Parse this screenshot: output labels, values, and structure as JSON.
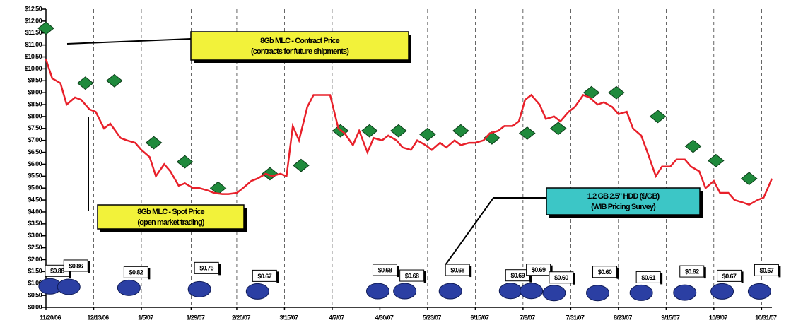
{
  "chart_data": {
    "type": "line",
    "xlim": [
      "11/20/06",
      "11/5/07"
    ],
    "xticks": [
      "11/20/06",
      "12/13/06",
      "1/5/07",
      "1/29/07",
      "2/20/07",
      "3/15/07",
      "4/7/07",
      "4/30/07",
      "5/23/07",
      "6/15/07",
      "7/8/07",
      "7/31/07",
      "8/23/07",
      "9/15/07",
      "10/8/07",
      "10/31/07"
    ],
    "ylim": [
      0,
      12.5
    ],
    "yticks": [
      {
        "value": 0,
        "label": "$0.00"
      },
      {
        "value": 0.5,
        "label": "$0.50"
      },
      {
        "value": 1,
        "label": "$1.00"
      },
      {
        "value": 1.5,
        "label": "$1.50"
      },
      {
        "value": 2,
        "label": "$2.00"
      },
      {
        "value": 2.5,
        "label": "$2.50"
      },
      {
        "value": 3,
        "label": "$3.00"
      },
      {
        "value": 3.5,
        "label": "$3.50"
      },
      {
        "value": 4,
        "label": "$4.00"
      },
      {
        "value": 4.5,
        "label": "$4.50"
      },
      {
        "value": 5,
        "label": "$5.00"
      },
      {
        "value": 5.5,
        "label": "$5.50"
      },
      {
        "value": 6,
        "label": "$6.00"
      },
      {
        "value": 6.5,
        "label": "$6.50"
      },
      {
        "value": 7,
        "label": "$7.00"
      },
      {
        "value": 7.5,
        "label": "$7.50"
      },
      {
        "value": 8,
        "label": "$8.00"
      },
      {
        "value": 8.5,
        "label": "$8.50"
      },
      {
        "value": 9,
        "label": "$9.00"
      },
      {
        "value": 9.5,
        "label": "$9.50"
      },
      {
        "value": 10,
        "label": "$10.00"
      },
      {
        "value": 10.5,
        "label": "$10.50"
      },
      {
        "value": 11,
        "label": "$11.00"
      },
      {
        "value": 11.5,
        "label": "$11.50"
      },
      {
        "value": 12,
        "label": "$12.00"
      },
      {
        "value": 12.5,
        "label": "$12.50"
      }
    ],
    "grid": "x",
    "series": [
      {
        "name": "8Gb MLC - Contract Price",
        "note": "(contracts for future shipments)",
        "style": "diamond",
        "color": "#1f8a3c",
        "box_color": "#f2f23a",
        "x": [
          "11/20/06",
          "12/9/06",
          "12/23/06",
          "1/11/07",
          "1/26/07",
          "2/11/07",
          "3/8/07",
          "3/23/07",
          "4/11/07",
          "4/25/07",
          "5/9/07",
          "5/23/07",
          "6/8/07",
          "6/23/07",
          "7/10/07",
          "7/25/07",
          "8/10/07",
          "8/22/07",
          "9/11/07",
          "9/28/07",
          "10/9/07",
          "10/25/07"
        ],
        "values": [
          11.7,
          9.4,
          9.5,
          6.9,
          6.1,
          5.0,
          5.6,
          5.95,
          7.4,
          7.4,
          7.4,
          7.25,
          7.4,
          7.1,
          7.3,
          7.5,
          9.0,
          9.0,
          8.0,
          6.75,
          6.15,
          5.4
        ]
      },
      {
        "name": "8Gb MLC - Spot Price",
        "note": "(open market trading)",
        "style": "line",
        "color": "#e8202a",
        "box_color": "#f2f23a",
        "x": [
          "11/20/06",
          "11/23/06",
          "11/27/06",
          "11/30/06",
          "12/4/06",
          "12/7/06",
          "12/11/06",
          "12/14/06",
          "12/18/06",
          "12/21/06",
          "12/26/06",
          "12/29/06",
          "1/2/07",
          "1/5/07",
          "1/9/07",
          "1/12/07",
          "1/16/07",
          "1/19/07",
          "1/23/07",
          "1/26/07",
          "1/30/07",
          "2/2/07",
          "2/6/07",
          "2/9/07",
          "2/13/07",
          "2/16/07",
          "2/20/07",
          "2/23/07",
          "2/27/07",
          "3/2/07",
          "3/6/07",
          "3/9/07",
          "3/13/07",
          "3/16/07",
          "3/19/07",
          "3/22/07",
          "3/26/07",
          "3/29/07",
          "4/2/07",
          "4/6/07",
          "4/10/07",
          "4/13/07",
          "4/17/07",
          "4/20/07",
          "4/24/07",
          "4/27/07",
          "5/1/07",
          "5/4/07",
          "5/8/07",
          "5/11/07",
          "5/15/07",
          "5/18/07",
          "5/22/07",
          "5/25/07",
          "5/29/07",
          "6/1/07",
          "6/5/07",
          "6/8/07",
          "6/12/07",
          "6/15/07",
          "6/19/07",
          "6/22/07",
          "6/26/07",
          "6/29/07",
          "7/3/07",
          "7/6/07",
          "7/9/07",
          "7/12/07",
          "7/16/07",
          "7/19/07",
          "7/23/07",
          "7/26/07",
          "7/30/07",
          "8/2/07",
          "8/6/07",
          "8/9/07",
          "8/13/07",
          "8/16/07",
          "8/20/07",
          "8/23/07",
          "8/27/07",
          "8/30/07",
          "9/3/07",
          "9/6/07",
          "9/10/07",
          "9/13/07",
          "9/17/07",
          "9/20/07",
          "9/24/07",
          "9/27/07",
          "10/1/07",
          "10/4/07",
          "10/8/07",
          "10/11/07",
          "10/15/07",
          "10/18/07",
          "10/22/07",
          "10/25/07",
          "10/29/07",
          "11/1/07",
          "11/5/07"
        ],
        "values": [
          10.4,
          9.6,
          9.4,
          8.5,
          8.8,
          8.7,
          8.3,
          8.2,
          7.5,
          7.7,
          7.1,
          7.0,
          6.9,
          6.6,
          6.3,
          5.5,
          6.0,
          5.7,
          5.1,
          5.2,
          5.0,
          5.0,
          4.9,
          4.8,
          4.75,
          4.75,
          4.8,
          5.0,
          5.3,
          5.4,
          5.6,
          5.5,
          5.6,
          5.5,
          7.6,
          7.0,
          8.4,
          8.9,
          8.9,
          8.9,
          7.5,
          7.3,
          6.8,
          7.4,
          6.5,
          7.1,
          7.0,
          7.2,
          7.0,
          6.7,
          6.6,
          7.0,
          6.8,
          6.6,
          6.9,
          6.7,
          7.0,
          6.8,
          6.9,
          6.9,
          7.0,
          7.3,
          7.4,
          7.6,
          7.6,
          7.8,
          8.7,
          8.9,
          8.5,
          7.9,
          8.0,
          7.8,
          8.2,
          8.4,
          8.9,
          8.8,
          8.5,
          8.6,
          8.4,
          8.1,
          8.2,
          7.5,
          7.2,
          6.5,
          5.5,
          5.9,
          5.9,
          6.2,
          6.2,
          5.9,
          5.7,
          5.0,
          5.3,
          4.8,
          4.8,
          4.5,
          4.4,
          4.3,
          4.5,
          4.6,
          5.4
        ]
      },
      {
        "name": "1.2 GB 2.5\" HDD ($/GB)",
        "note": "(WIB Pricing Survey)",
        "style": "circle",
        "color": "#2b3fa3",
        "box_color": "#3cc6c6",
        "x": [
          "11/22/06",
          "12/1/06",
          "12/30/06",
          "2/2/07",
          "3/2/07",
          "4/29/07",
          "5/12/07",
          "6/3/07",
          "7/2/07",
          "7/12/07",
          "7/23/07",
          "8/13/07",
          "9/3/07",
          "9/24/07",
          "10/12/07",
          "10/30/07"
        ],
        "values": [
          0.88,
          0.86,
          0.82,
          0.76,
          0.67,
          0.68,
          0.68,
          0.68,
          0.69,
          0.69,
          0.6,
          0.6,
          0.61,
          0.62,
          0.67,
          0.67
        ],
        "value_labels": [
          "$0.88",
          "$0.86",
          "$0.82",
          "$0.76",
          "$0.67",
          "$0.68",
          "$0.68",
          "$0.68",
          "$0.69",
          "$0.69",
          "$0.60",
          "$0.60",
          "$0.61",
          "$0.62",
          "$0.67",
          "$0.67"
        ]
      }
    ]
  }
}
